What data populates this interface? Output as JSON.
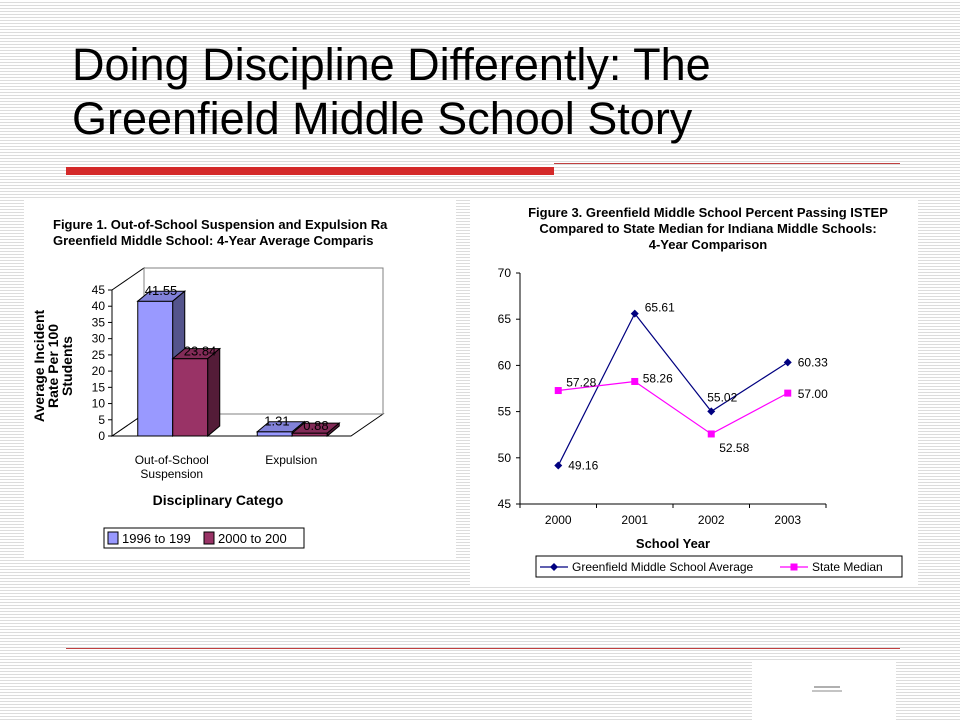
{
  "slide": {
    "title": "Doing Discipline Differently: The Greenfield Middle School Story"
  },
  "colors": {
    "accent_red": "#d42a2a",
    "series_1996": "#9999ff",
    "series_2000": "#993366",
    "greenfield_line": "#000080",
    "state_line": "#ff00ff"
  },
  "chart_data": [
    {
      "type": "bar",
      "style": "3d-clustered",
      "title_lines": [
        "Figure 1. Out-of-School Suspension and Expulsion Ra",
        "Greenfield Middle School: 4-Year Average Comparis"
      ],
      "ylabel_lines": [
        "Average Incident",
        "Rate Per 100",
        "Students"
      ],
      "xlabel": "Disciplinary Catego",
      "categories": [
        [
          "Out-of-School",
          "Suspension"
        ],
        [
          "Expulsion"
        ]
      ],
      "series": [
        {
          "name": "1996 to 199",
          "values": [
            41.55,
            1.31
          ],
          "labels": [
            "41.55",
            "1.31"
          ]
        },
        {
          "name": "2000 to 200",
          "values": [
            23.84,
            0.88
          ],
          "labels": [
            "23.84",
            "0.88"
          ]
        }
      ],
      "ylim": [
        0,
        45
      ],
      "yticks": [
        0,
        5,
        10,
        15,
        20,
        25,
        30,
        35,
        40,
        45
      ],
      "ytick_labels": [
        "0",
        "5",
        "10",
        "15",
        "20",
        "25",
        "30",
        "35",
        "40",
        "45"
      ],
      "legend_position": "bottom"
    },
    {
      "type": "line",
      "title_lines": [
        "Figure 3. Greenfield Middle School Percent Passing ISTEP",
        "Compared to State Median for Indiana Middle Schools:",
        "4-Year Comparison"
      ],
      "xlabel": "School Year",
      "categories": [
        "2000",
        "2001",
        "2002",
        "2003"
      ],
      "series": [
        {
          "name": "Greenfield Middle School Average",
          "marker": "diamond",
          "values": [
            49.16,
            65.61,
            55.02,
            60.33
          ],
          "labels": [
            "49.16",
            "65.61",
            "55.02",
            "60.33"
          ]
        },
        {
          "name": "State Median",
          "marker": "square",
          "values": [
            57.28,
            58.26,
            52.58,
            57.0
          ],
          "labels": [
            "57.28",
            "58.26",
            "52.58",
            "57.00"
          ]
        }
      ],
      "ylim": [
        45,
        70
      ],
      "yticks": [
        45,
        50,
        55,
        60,
        65,
        70
      ],
      "ytick_labels": [
        "45",
        "50",
        "55",
        "60",
        "65",
        "70"
      ],
      "legend_position": "bottom"
    }
  ]
}
